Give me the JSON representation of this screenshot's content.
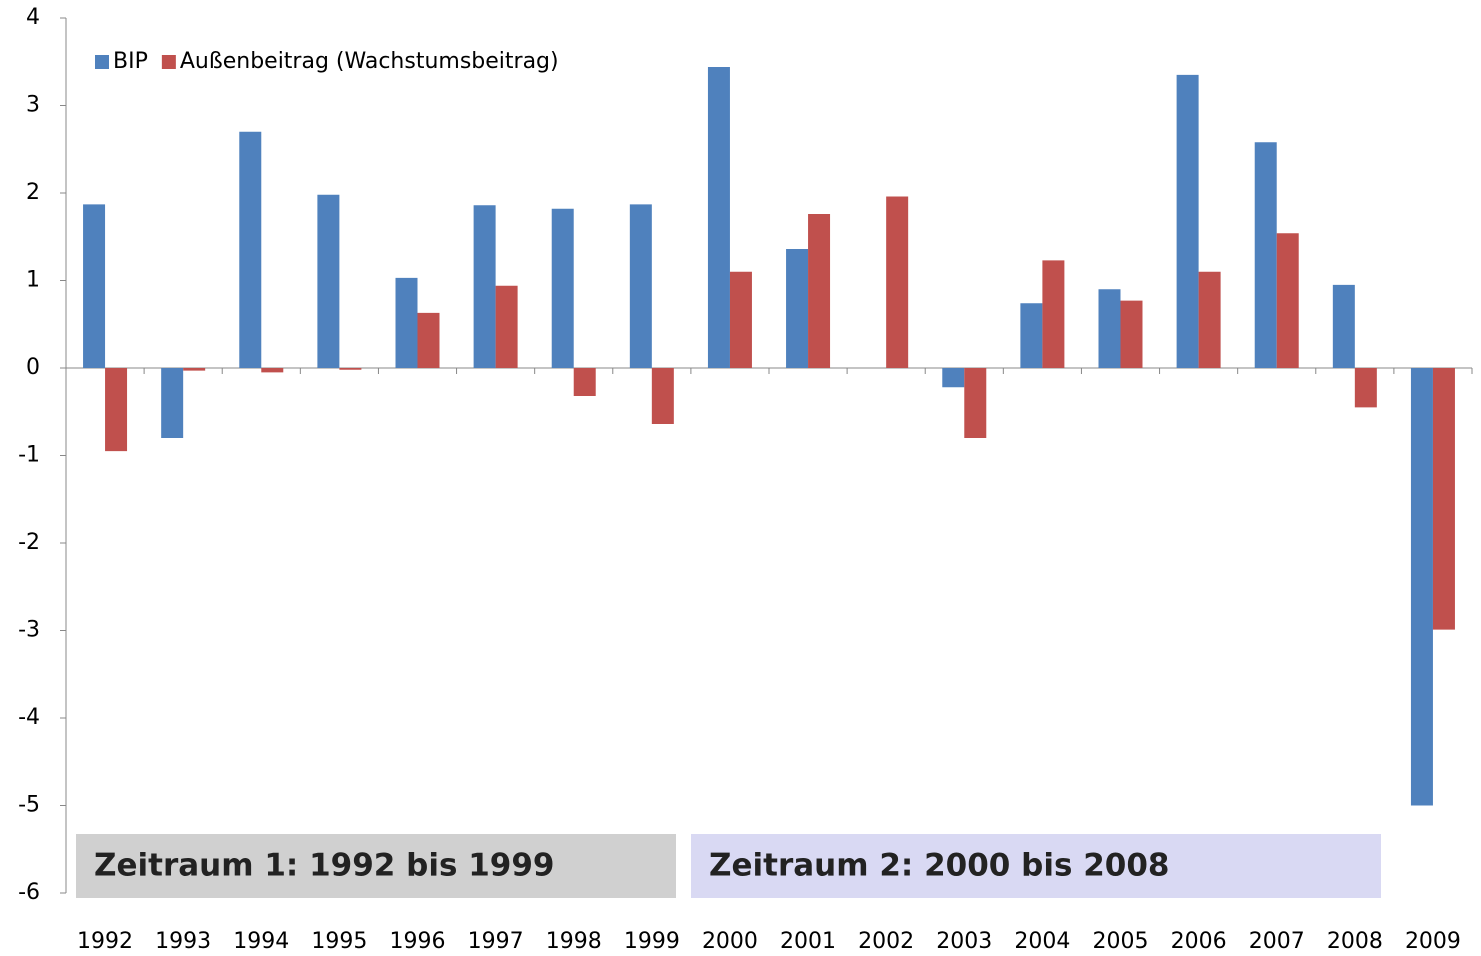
{
  "chart_data": {
    "type": "bar",
    "categories": [
      "1992",
      "1993",
      "1994",
      "1995",
      "1996",
      "1997",
      "1998",
      "1999",
      "2000",
      "2001",
      "2002",
      "2003",
      "2004",
      "2005",
      "2006",
      "2007",
      "2008",
      "2009"
    ],
    "series": [
      {
        "name": "BIP",
        "color": "#4f81bd",
        "values": [
          1.87,
          -0.8,
          2.7,
          1.98,
          1.03,
          1.86,
          1.82,
          1.87,
          3.44,
          1.36,
          0.0,
          -0.22,
          0.74,
          0.9,
          3.35,
          2.58,
          0.95,
          -5.0
        ]
      },
      {
        "name": "Außenbeitrag (Wachstumsbeitrag)",
        "color": "#c0504d",
        "values": [
          -0.95,
          -0.03,
          -0.05,
          -0.02,
          0.63,
          0.94,
          -0.32,
          -0.64,
          1.1,
          1.76,
          1.96,
          -0.8,
          1.23,
          0.77,
          1.1,
          1.54,
          -0.45,
          -2.99
        ]
      }
    ],
    "ylim": [
      -6,
      4
    ],
    "yticks": [
      -6,
      -5,
      -4,
      -3,
      -2,
      -1,
      0,
      1,
      2,
      3,
      4
    ],
    "grid": false,
    "legend": "upper-left",
    "annotations": [
      {
        "text": "Zeitraum 1: 1992 bis 1999",
        "color": "#d0d0d0"
      },
      {
        "text": "Zeitraum 2: 2000 bis 2008",
        "color": "#d9d9f3"
      }
    ]
  }
}
